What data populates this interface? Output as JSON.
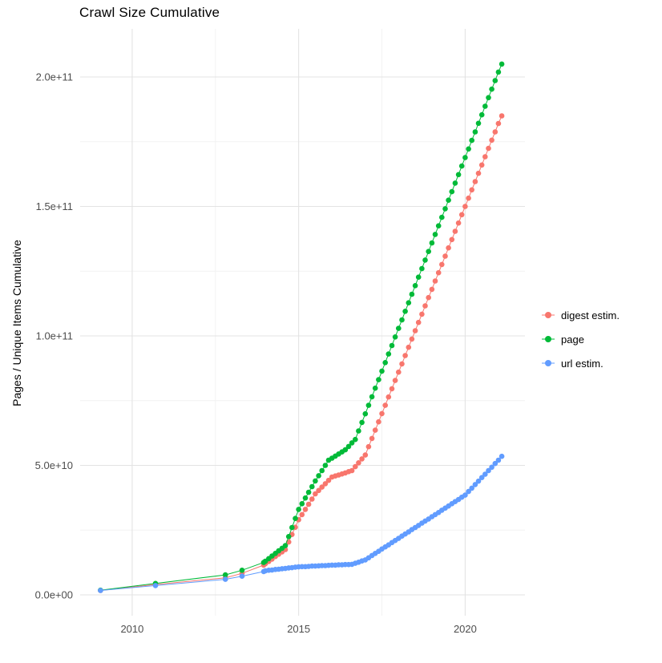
{
  "chart_data": {
    "type": "scatter",
    "mode": "lines+markers",
    "title": "Crawl Size Cumulative",
    "xlabel": "",
    "ylabel": "Pages / Unique Items Cumulative",
    "legend_position": "right",
    "axes": {
      "x_ticks": [
        2010,
        2015,
        2020
      ],
      "x_tick_labels": [
        "2010",
        "2015",
        "2020"
      ],
      "x_minor": [
        2012.5,
        2017.5
      ],
      "y_ticks_billions": [
        0,
        50,
        100,
        150,
        200
      ],
      "y_tick_labels": [
        "0.0e+00",
        "5.0e+10",
        "1.0e+11",
        "1.5e+11",
        "2.0e+11"
      ],
      "y_minor_billions": [
        25,
        75,
        125,
        175
      ],
      "y_unit": "point values stored in billions (1e9)",
      "ylim": [
        0,
        210000000000
      ],
      "grid": true
    },
    "series": [
      {
        "name": "digest estim.",
        "color": "#F8766D",
        "points": [
          [
            2009.05,
            1.7
          ],
          [
            2010.7,
            4.0
          ],
          [
            2012.8,
            6.6
          ],
          [
            2013.3,
            8.3
          ],
          [
            2013.95,
            11.5
          ],
          [
            2014.0,
            12
          ],
          [
            2014.1,
            12.9
          ],
          [
            2014.2,
            13.8
          ],
          [
            2014.3,
            14.8
          ],
          [
            2014.4,
            15.7
          ],
          [
            2014.5,
            16.6
          ],
          [
            2014.6,
            17.5
          ],
          [
            2014.7,
            20.4
          ],
          [
            2014.8,
            23.3
          ],
          [
            2014.9,
            26.1
          ],
          [
            2015.0,
            29
          ],
          [
            2015.1,
            31
          ],
          [
            2015.2,
            33
          ],
          [
            2015.3,
            35
          ],
          [
            2015.4,
            37
          ],
          [
            2015.5,
            39
          ],
          [
            2015.6,
            40.3
          ],
          [
            2015.7,
            41.6
          ],
          [
            2015.8,
            42.9
          ],
          [
            2015.9,
            44.2
          ],
          [
            2016.0,
            45.5
          ],
          [
            2016.1,
            45.9
          ],
          [
            2016.2,
            46.3
          ],
          [
            2016.3,
            46.7
          ],
          [
            2016.4,
            47.1
          ],
          [
            2016.5,
            47.6
          ],
          [
            2016.6,
            48
          ],
          [
            2016.7,
            49.5
          ],
          [
            2016.8,
            51
          ],
          [
            2016.9,
            52.5
          ],
          [
            2017.0,
            54
          ],
          [
            2017.1,
            57.2
          ],
          [
            2017.2,
            60.4
          ],
          [
            2017.3,
            63.6
          ],
          [
            2017.4,
            66.8
          ],
          [
            2017.5,
            70
          ],
          [
            2017.6,
            73.2
          ],
          [
            2017.7,
            76.4
          ],
          [
            2017.8,
            79.6
          ],
          [
            2017.9,
            82.8
          ],
          [
            2018.0,
            86
          ],
          [
            2018.1,
            89.2
          ],
          [
            2018.2,
            92.4
          ],
          [
            2018.3,
            95.6
          ],
          [
            2018.4,
            98.8
          ],
          [
            2018.5,
            102
          ],
          [
            2018.6,
            105.2
          ],
          [
            2018.7,
            108.4
          ],
          [
            2018.8,
            111.6
          ],
          [
            2018.9,
            114.8
          ],
          [
            2019.0,
            118
          ],
          [
            2019.1,
            121.2
          ],
          [
            2019.2,
            124.4
          ],
          [
            2019.3,
            127.6
          ],
          [
            2019.4,
            130.8
          ],
          [
            2019.5,
            134
          ],
          [
            2019.6,
            137.2
          ],
          [
            2019.7,
            140.4
          ],
          [
            2019.8,
            143.6
          ],
          [
            2019.9,
            146.8
          ],
          [
            2020.0,
            150
          ],
          [
            2020.1,
            153.2
          ],
          [
            2020.2,
            156.4
          ],
          [
            2020.3,
            159.6
          ],
          [
            2020.4,
            162.8
          ],
          [
            2020.5,
            166
          ],
          [
            2020.6,
            169.2
          ],
          [
            2020.7,
            172.4
          ],
          [
            2020.8,
            175.6
          ],
          [
            2020.9,
            178.8
          ],
          [
            2021.0,
            182
          ],
          [
            2021.1,
            185
          ]
        ]
      },
      {
        "name": "page",
        "color": "#00BA38",
        "points": [
          [
            2009.05,
            1.8
          ],
          [
            2010.7,
            4.4
          ],
          [
            2012.8,
            7.7
          ],
          [
            2013.3,
            9.5
          ],
          [
            2013.95,
            12.5
          ],
          [
            2014.0,
            13
          ],
          [
            2014.1,
            14
          ],
          [
            2014.2,
            15
          ],
          [
            2014.3,
            16
          ],
          [
            2014.4,
            17
          ],
          [
            2014.5,
            18
          ],
          [
            2014.6,
            19
          ],
          [
            2014.7,
            22.5
          ],
          [
            2014.8,
            26
          ],
          [
            2014.9,
            29.5
          ],
          [
            2015.0,
            33
          ],
          [
            2015.1,
            35.2
          ],
          [
            2015.2,
            37.4
          ],
          [
            2015.3,
            39.6
          ],
          [
            2015.4,
            41.8
          ],
          [
            2015.5,
            44
          ],
          [
            2015.6,
            46
          ],
          [
            2015.7,
            48
          ],
          [
            2015.8,
            50
          ],
          [
            2015.9,
            52
          ],
          [
            2016.0,
            52.8
          ],
          [
            2016.1,
            53.6
          ],
          [
            2016.2,
            54.4
          ],
          [
            2016.3,
            55.2
          ],
          [
            2016.4,
            56
          ],
          [
            2016.5,
            57.3
          ],
          [
            2016.6,
            58.7
          ],
          [
            2016.7,
            60
          ],
          [
            2016.8,
            63.3
          ],
          [
            2016.9,
            66.6
          ],
          [
            2017.0,
            69.9
          ],
          [
            2017.1,
            73.2
          ],
          [
            2017.2,
            76.5
          ],
          [
            2017.3,
            79.8
          ],
          [
            2017.4,
            83.1
          ],
          [
            2017.5,
            86.4
          ],
          [
            2017.6,
            89.7
          ],
          [
            2017.7,
            93
          ],
          [
            2017.8,
            96.3
          ],
          [
            2017.9,
            99.6
          ],
          [
            2018.0,
            102.9
          ],
          [
            2018.1,
            106.2
          ],
          [
            2018.2,
            109.5
          ],
          [
            2018.3,
            112.8
          ],
          [
            2018.4,
            116.1
          ],
          [
            2018.5,
            119.4
          ],
          [
            2018.6,
            122.7
          ],
          [
            2018.7,
            126
          ],
          [
            2018.8,
            129.3
          ],
          [
            2018.9,
            132.6
          ],
          [
            2019.0,
            135.9
          ],
          [
            2019.1,
            139.2
          ],
          [
            2019.2,
            142.5
          ],
          [
            2019.3,
            145.8
          ],
          [
            2019.4,
            149.1
          ],
          [
            2019.5,
            152.4
          ],
          [
            2019.6,
            155.7
          ],
          [
            2019.7,
            159
          ],
          [
            2019.8,
            162.3
          ],
          [
            2019.9,
            165.6
          ],
          [
            2020.0,
            168.9
          ],
          [
            2020.1,
            172.2
          ],
          [
            2020.2,
            175.5
          ],
          [
            2020.3,
            178.8
          ],
          [
            2020.4,
            182.1
          ],
          [
            2020.5,
            185.4
          ],
          [
            2020.6,
            188.7
          ],
          [
            2020.7,
            192
          ],
          [
            2020.8,
            195.3
          ],
          [
            2020.9,
            198.6
          ],
          [
            2021.0,
            201.9
          ],
          [
            2021.1,
            205
          ]
        ]
      },
      {
        "name": "url estim.",
        "color": "#619CFF",
        "points": [
          [
            2009.05,
            1.7
          ],
          [
            2010.7,
            3.6
          ],
          [
            2012.8,
            6.0
          ],
          [
            2013.3,
            7.2
          ],
          [
            2013.95,
            9.0
          ],
          [
            2014.0,
            9.3
          ],
          [
            2014.1,
            9.5
          ],
          [
            2014.2,
            9.6
          ],
          [
            2014.3,
            9.8
          ],
          [
            2014.4,
            9.9
          ],
          [
            2014.5,
            10.1
          ],
          [
            2014.6,
            10.2
          ],
          [
            2014.7,
            10.4
          ],
          [
            2014.8,
            10.5
          ],
          [
            2014.9,
            10.7
          ],
          [
            2015.0,
            10.8
          ],
          [
            2015.1,
            10.9
          ],
          [
            2015.2,
            10.9
          ],
          [
            2015.3,
            11.0
          ],
          [
            2015.4,
            11.1
          ],
          [
            2015.5,
            11.1
          ],
          [
            2015.6,
            11.2
          ],
          [
            2015.7,
            11.3
          ],
          [
            2015.8,
            11.3
          ],
          [
            2015.9,
            11.4
          ],
          [
            2016.0,
            11.5
          ],
          [
            2016.1,
            11.5
          ],
          [
            2016.2,
            11.6
          ],
          [
            2016.3,
            11.6
          ],
          [
            2016.4,
            11.7
          ],
          [
            2016.5,
            11.7
          ],
          [
            2016.6,
            11.8
          ],
          [
            2016.7,
            12.2
          ],
          [
            2016.8,
            12.6
          ],
          [
            2016.9,
            13.1
          ],
          [
            2017.0,
            13.5
          ],
          [
            2017.1,
            14.3
          ],
          [
            2017.2,
            15.2
          ],
          [
            2017.3,
            16
          ],
          [
            2017.4,
            16.8
          ],
          [
            2017.5,
            17.7
          ],
          [
            2017.6,
            18.5
          ],
          [
            2017.7,
            19.3
          ],
          [
            2017.8,
            20.2
          ],
          [
            2017.9,
            21
          ],
          [
            2018.0,
            21.8
          ],
          [
            2018.1,
            22.7
          ],
          [
            2018.2,
            23.5
          ],
          [
            2018.3,
            24.3
          ],
          [
            2018.4,
            25.2
          ],
          [
            2018.5,
            26
          ],
          [
            2018.6,
            26.8
          ],
          [
            2018.7,
            27.7
          ],
          [
            2018.8,
            28.5
          ],
          [
            2018.9,
            29.3
          ],
          [
            2019.0,
            30.2
          ],
          [
            2019.1,
            31
          ],
          [
            2019.2,
            31.8
          ],
          [
            2019.3,
            32.7
          ],
          [
            2019.4,
            33.5
          ],
          [
            2019.5,
            34.3
          ],
          [
            2019.6,
            35.2
          ],
          [
            2019.7,
            36
          ],
          [
            2019.8,
            36.8
          ],
          [
            2019.9,
            37.7
          ],
          [
            2020.0,
            38.5
          ],
          [
            2020.1,
            39.9
          ],
          [
            2020.2,
            41.2
          ],
          [
            2020.3,
            42.6
          ],
          [
            2020.4,
            43.9
          ],
          [
            2020.5,
            45.3
          ],
          [
            2020.6,
            46.6
          ],
          [
            2020.7,
            48
          ],
          [
            2020.8,
            49.3
          ],
          [
            2020.9,
            50.7
          ],
          [
            2021.0,
            52
          ],
          [
            2021.1,
            53.5
          ]
        ]
      }
    ]
  }
}
